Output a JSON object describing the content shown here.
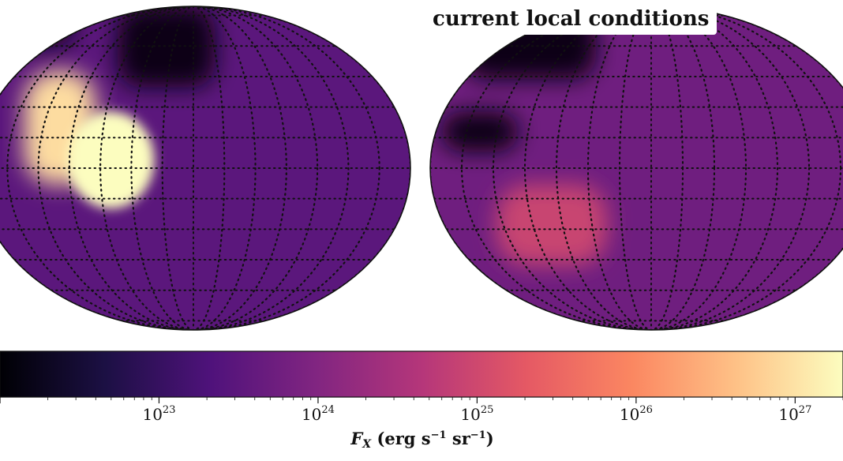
{
  "chart_data": {
    "type": "heatmap",
    "projection": "mollweide",
    "panel_label": "current local conditions",
    "colormap": "magma",
    "colormap_stops": [
      "#000004",
      "#1c1044",
      "#4f127b",
      "#812581",
      "#b5367a",
      "#e55964",
      "#fb8761",
      "#fec287",
      "#fcfdbf"
    ],
    "colorbar": {
      "scale": "log",
      "range": [
        1e+22,
        2e+27
      ],
      "ticks": [
        {
          "value": 1e+23,
          "base": "10",
          "exp": "23"
        },
        {
          "value": 1e+24,
          "base": "10",
          "exp": "24"
        },
        {
          "value": 1e+25,
          "base": "10",
          "exp": "25"
        },
        {
          "value": 1e+26,
          "base": "10",
          "exp": "26"
        },
        {
          "value": 1e+27,
          "base": "10",
          "exp": "27"
        }
      ],
      "label": {
        "symbol": "F",
        "subscript": "X",
        "units_prefix": "(erg s",
        "exp1": "−1",
        "units_mid": " sr",
        "exp2": "−1",
        "units_suffix": ")"
      }
    },
    "panels": [
      {
        "name": "left-hemisphere",
        "background_level": 0.28,
        "dark_level": 0.03,
        "dark_regions": [
          [
            -0.95,
            -0.55,
            0.75,
            1.0
          ],
          [
            0.1,
            -0.35,
            1.0,
            0.5
          ]
        ],
        "bright_level": 0.93,
        "bright_regions": [
          [
            -0.78,
            -0.45,
            -0.1,
            0.6
          ]
        ],
        "peak_level": 1.0,
        "peak_center": [
          -0.38,
          0.05
        ]
      },
      {
        "name": "right-hemisphere",
        "background_level": 0.33,
        "dark_level": 0.04,
        "dark_regions": [
          [
            -0.85,
            -0.25,
            0.55,
            1.0
          ],
          [
            -0.95,
            -0.6,
            0.1,
            0.35
          ]
        ],
        "bright_level": 0.55,
        "bright_regions": [
          [
            -0.7,
            -0.2,
            -0.6,
            -0.1
          ]
        ]
      }
    ]
  }
}
